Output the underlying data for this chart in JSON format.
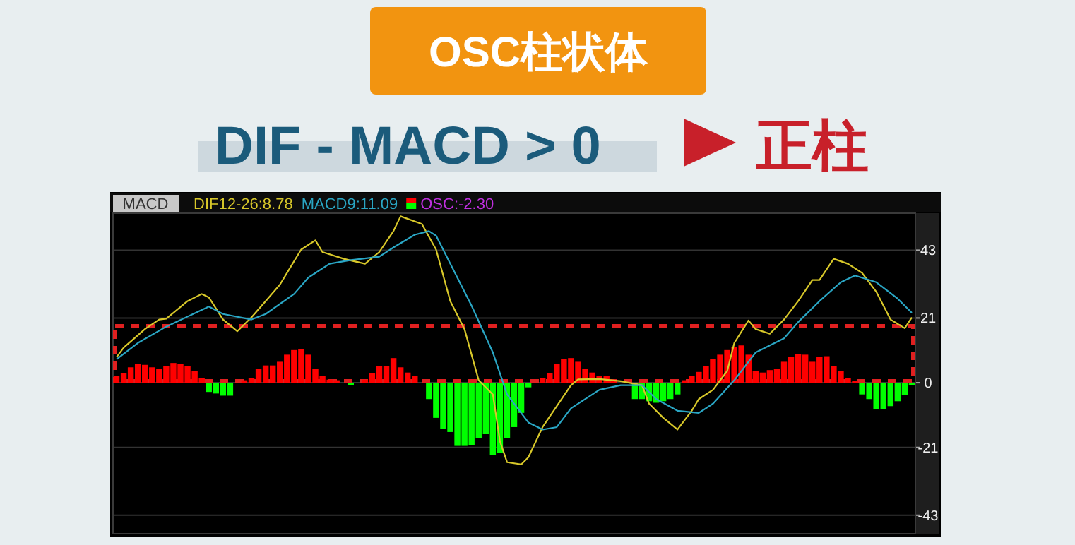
{
  "chart_data": {
    "type": "bar",
    "title": "OSC柱状体",
    "subtitle": "DIF - MACD > 0",
    "annotations": [
      "正柱",
      "MACD"
    ],
    "categories": [
      null,
      null,
      null,
      null,
      null,
      null,
      null,
      null,
      null,
      null,
      null,
      null,
      null,
      null,
      null,
      null,
      null,
      null,
      null,
      null,
      null,
      null,
      null,
      null,
      null,
      null,
      null,
      null,
      null,
      null,
      null,
      null,
      null,
      null,
      null,
      null,
      null,
      null,
      null,
      null,
      null,
      null,
      null,
      null,
      null,
      null,
      null,
      null,
      null,
      null,
      null,
      null,
      null,
      null,
      null,
      null,
      null,
      null,
      null,
      null,
      null,
      null,
      null,
      null,
      null,
      null,
      null,
      null,
      null,
      null,
      null,
      null,
      null,
      null,
      null,
      null,
      null,
      null,
      null,
      null,
      null,
      null,
      null,
      null,
      null,
      null,
      null,
      null,
      null,
      null,
      null,
      null,
      null,
      null,
      null,
      null,
      null,
      null,
      null,
      null,
      null,
      null,
      null,
      null,
      null,
      null,
      null,
      null,
      null,
      null,
      null,
      null,
      null
    ],
    "series": [
      {
        "name": "DIF12-26:8.78",
        "type": "line",
        "color": "#d8c82a",
        "values": [
          8.3,
          11.4,
          null,
          null,
          17.4,
          null,
          20.5,
          20.8,
          null,
          null,
          26.5,
          null,
          28.8,
          27.7,
          null,
          20.5,
          null,
          16.7,
          null,
          21.2,
          null,
          26.5,
          null,
          31.8,
          35.6,
          null,
          43.2,
          null,
          46.2,
          42.4,
          null,
          null,
          40.2,
          null,
          null,
          38.6,
          null,
          42.4,
          null,
          49.2,
          54,
          null,
          null,
          51.5,
          null,
          43.2,
          null,
          26.5,
          null,
          17.4,
          null,
          0.8,
          null,
          -3.8,
          -19,
          -25.8,
          null,
          -26.5,
          -24.2,
          null,
          -14.4,
          null,
          null,
          null,
          -0.8,
          1.1,
          null,
          null,
          1.2,
          null,
          null,
          0.5,
          null,
          null,
          -0.8,
          -6.8,
          null,
          -11.4,
          null,
          -15.2,
          null,
          -9.1,
          -5.3,
          null,
          -2.3,
          null,
          3.8,
          12.9,
          null,
          20.2,
          17.4,
          null,
          15.9,
          null,
          20.5,
          null,
          26.5,
          null,
          33.3,
          33.3,
          null,
          40.2,
          null,
          38.6,
          null,
          35.6,
          null,
          29.5,
          null,
          20.5,
          null,
          17.7,
          21.2
        ]
      },
      {
        "name": "MACD9:11.09",
        "type": "line",
        "color": "#2aa6c4",
        "values": [
          7.6,
          null,
          null,
          12.9,
          null,
          null,
          null,
          18.2,
          null,
          null,
          null,
          null,
          null,
          24.7,
          null,
          22.3,
          null,
          null,
          null,
          20.5,
          null,
          22.3,
          null,
          null,
          null,
          28.8,
          null,
          34.1,
          null,
          null,
          38.6,
          null,
          null,
          39.8,
          null,
          null,
          null,
          40.9,
          null,
          43.9,
          null,
          null,
          48,
          null,
          49.2,
          47.7,
          null,
          38.6,
          null,
          null,
          25,
          null,
          null,
          9.8,
          null,
          -3.8,
          null,
          null,
          -12.9,
          null,
          -15.2,
          null,
          -14.4,
          null,
          -8.3,
          null,
          null,
          null,
          -2.3,
          null,
          null,
          -0.8,
          null,
          null,
          -0.8,
          null,
          -5.3,
          null,
          null,
          -9.1,
          null,
          null,
          -9.8,
          null,
          -6.8,
          null,
          null,
          0.8,
          null,
          null,
          9.8,
          null,
          null,
          null,
          14.4,
          null,
          19.7,
          null,
          null,
          26.5,
          null,
          null,
          32.6,
          null,
          34.8,
          null,
          null,
          32.6,
          null,
          null,
          27.3,
          null,
          22.7
        ]
      },
      {
        "name": "OSC:-2.30",
        "values": [
          2.3,
          3.0,
          5.0,
          6.1,
          5.8,
          5.0,
          4.5,
          5.3,
          6.4,
          6.1,
          5.3,
          3.8,
          1.5,
          -3,
          -3.5,
          -4.2,
          -4.2,
          0,
          0.8,
          1.5,
          4.5,
          5.6,
          5.6,
          6.8,
          9.1,
          10.6,
          11,
          9.1,
          4.5,
          2.3,
          1,
          0.8,
          0,
          -0.8,
          0,
          1,
          3,
          5.3,
          5.3,
          8,
          5,
          3.3,
          2.3,
          0,
          -5.3,
          -11.4,
          -15,
          -16,
          -20.5,
          -20.5,
          -20.3,
          -18,
          -16.7,
          -23.5,
          -22.7,
          -18,
          -14.4,
          -9.8,
          -1.5,
          0,
          1.5,
          3,
          6,
          7.6,
          8,
          6.8,
          4.5,
          3.3,
          2.3,
          2.3,
          0.8,
          null,
          0,
          -5.3,
          -5.3,
          -6,
          -6.5,
          -6,
          -5.3,
          -3.8,
          0.8,
          2.3,
          3.5,
          5.3,
          7.6,
          9.1,
          10.6,
          11.7,
          12.1,
          9.1,
          3.8,
          3.3,
          4.1,
          4.5,
          6.8,
          8.3,
          9.4,
          9.1,
          6.8,
          8.3,
          8.6,
          5.3,
          3.8,
          1.5,
          0.5,
          -3.8,
          -5.3,
          -8.6,
          -8.6,
          -7.6,
          -6,
          -4.1,
          -0.8
        ],
        "colors": [
          "#ff0000",
          "#ff0000",
          "#ff0000",
          "#ff0000",
          "#ff0000",
          "#ff0000",
          "#ff0000",
          "#ff0000",
          "#ff0000",
          "#ff0000",
          "#ff0000",
          "#ff0000",
          "#ff0000",
          "#00ff00",
          "#00ff00",
          "#00ff00",
          "#00ff00",
          "#ff0000",
          "#ff0000",
          "#ff0000",
          "#ff0000",
          "#ff0000",
          "#ff0000",
          "#ff0000",
          "#ff0000",
          "#ff0000",
          "#ff0000",
          "#ff0000",
          "#ff0000",
          "#ff0000",
          "#ff0000",
          "#ff0000",
          "#ff0000",
          "#00ff00",
          "#ff0000",
          "#ff0000",
          "#ff0000",
          "#ff0000",
          "#ff0000",
          "#ff0000",
          "#ff0000",
          "#ff0000",
          "#ff0000",
          "#ff0000",
          "#00ff00",
          "#00ff00",
          "#00ff00",
          "#00ff00",
          "#00ff00",
          "#00ff00",
          "#00ff00",
          "#00ff00",
          "#00ff00",
          "#00ff00",
          "#00ff00",
          "#00ff00",
          "#00ff00",
          "#00ff00",
          "#00ff00",
          "#ff0000",
          "#ff0000",
          "#ff0000",
          "#ff0000",
          "#ff0000",
          "#ff0000",
          "#ff0000",
          "#ff0000",
          "#ff0000",
          "#ff0000",
          "#ff0000",
          "#ff0000",
          "#ff0000",
          "#ff0000",
          "#00ff00",
          "#00ff00",
          "#00ff00",
          "#00ff00",
          "#00ff00",
          "#00ff00",
          "#00ff00",
          "#ff0000",
          "#ff0000",
          "#ff0000",
          "#ff0000",
          "#ff0000",
          "#ff0000",
          "#ff0000",
          "#ff0000",
          "#ff0000",
          "#ff0000",
          "#ff0000",
          "#ff0000",
          "#ff0000",
          "#ff0000",
          "#ff0000",
          "#ff0000",
          "#ff0000",
          "#ff0000",
          "#ff0000",
          "#ff0000",
          "#ff0000",
          "#ff0000",
          "#ff0000",
          "#ff0000",
          "#ff0000",
          "#00ff00",
          "#00ff00",
          "#00ff00",
          "#00ff00",
          "#00ff00",
          "#00ff00",
          "#00ff00",
          "#00ff00"
        ]
      }
    ],
    "ylim": [
      -49,
      55
    ],
    "yticks": [
      43,
      21,
      0,
      -21,
      -43
    ],
    "grid": "y",
    "legend": "top left",
    "tick_labels": "y"
  }
}
